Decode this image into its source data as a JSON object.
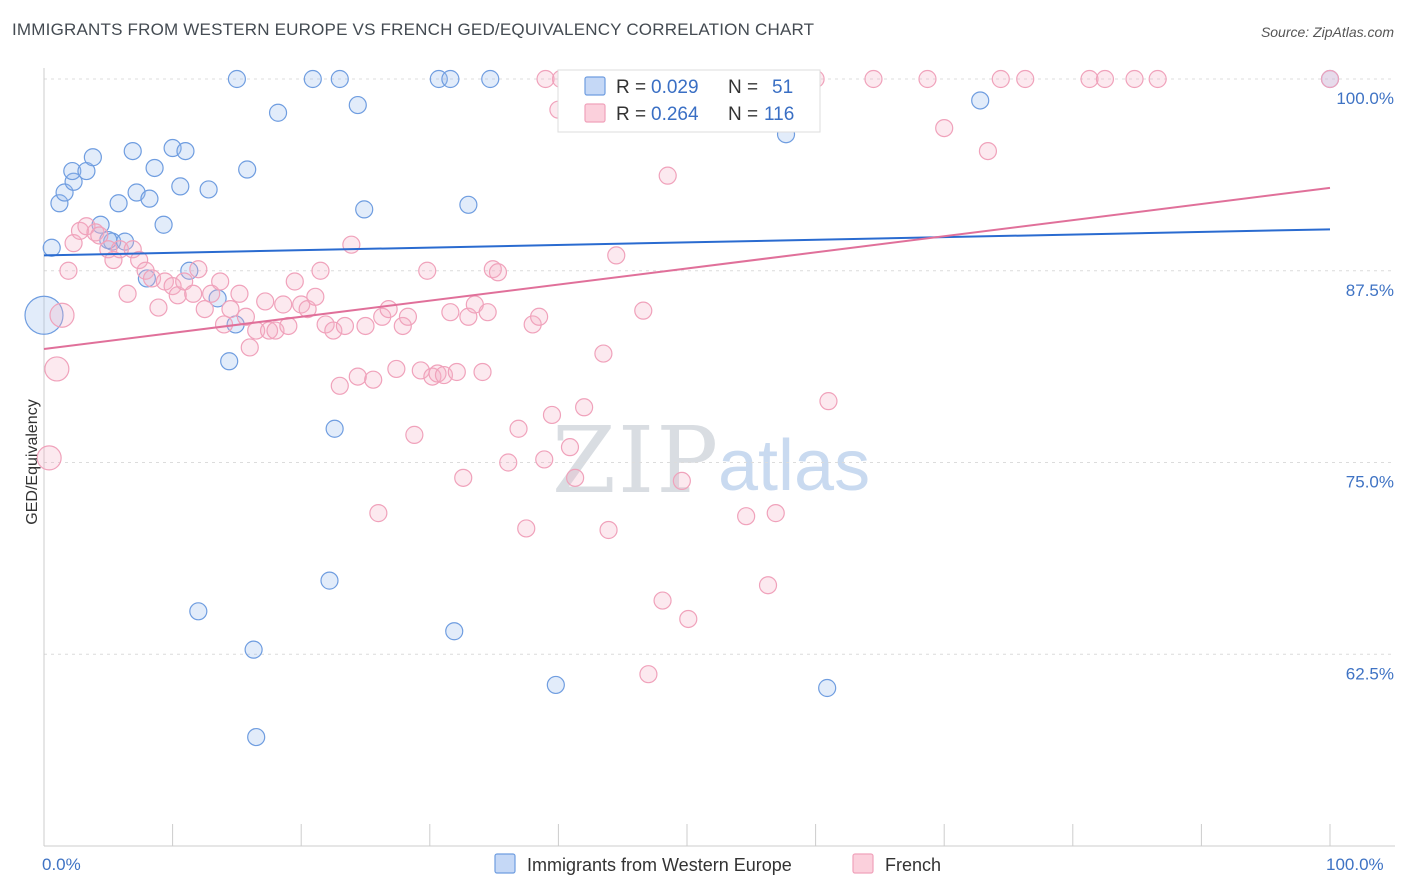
{
  "title": "IMMIGRANTS FROM WESTERN EUROPE VS FRENCH GED/EQUIVALENCY CORRELATION CHART",
  "source": "Source: ZipAtlas.com",
  "watermark": {
    "part1": "ZIP",
    "part2": "atlas"
  },
  "colors": {
    "blue": "#6f9de0",
    "blue_line": "#2a6bd0",
    "pink": "#f0a2bb",
    "pink_line": "#e0709a"
  },
  "legend_top": {
    "rows": [
      {
        "r_label": "R =",
        "r_value": "0.029",
        "n_label": "N =",
        "n_value": "51"
      },
      {
        "r_label": "R =",
        "r_value": "0.264",
        "n_label": "N =",
        "n_value": "116"
      }
    ]
  },
  "chart_data": {
    "type": "scatter",
    "title": "IMMIGRANTS FROM WESTERN EUROPE VS FRENCH GED/EQUIVALENCY CORRELATION CHART",
    "xlabel": "",
    "ylabel": "GED/Equivalency",
    "xlim": [
      0,
      100
    ],
    "ylim": [
      50,
      100
    ],
    "x_tick_labels": [
      "0.0%",
      "100.0%"
    ],
    "y_ticks": [
      62.5,
      75.0,
      87.5,
      100.0
    ],
    "y_tick_labels": [
      "62.5%",
      "75.0%",
      "87.5%",
      "100.0%"
    ],
    "grid": true,
    "legend_position": "bottom",
    "series": [
      {
        "name": "Immigrants from Western Europe",
        "color": "#6f9de0",
        "trend": {
          "y_at_x0": 88.5,
          "y_at_x100": 90.2
        },
        "points": [
          [
            0.0,
            84.6
          ],
          [
            0.6,
            89.0
          ],
          [
            1.2,
            91.9
          ],
          [
            1.6,
            92.6
          ],
          [
            2.3,
            93.3
          ],
          [
            2.2,
            94.0
          ],
          [
            3.3,
            94.0
          ],
          [
            3.8,
            94.9
          ],
          [
            4.4,
            90.5
          ],
          [
            5.3,
            89.4
          ],
          [
            5.8,
            91.9
          ],
          [
            6.3,
            89.4
          ],
          [
            6.9,
            95.3
          ],
          [
            7.2,
            92.6
          ],
          [
            8.2,
            92.2
          ],
          [
            8.6,
            94.2
          ],
          [
            9.3,
            90.5
          ],
          [
            10.0,
            95.5
          ],
          [
            10.6,
            93.0
          ],
          [
            11.0,
            95.3
          ],
          [
            11.3,
            87.5
          ],
          [
            12.8,
            92.8
          ],
          [
            13.5,
            85.7
          ],
          [
            14.4,
            81.6
          ],
          [
            14.9,
            84.0
          ],
          [
            15.8,
            94.1
          ],
          [
            16.3,
            62.8
          ],
          [
            16.5,
            57.1
          ],
          [
            18.2,
            97.8
          ],
          [
            20.9,
            100.0
          ],
          [
            22.2,
            67.3
          ],
          [
            22.6,
            77.2
          ],
          [
            23.0,
            100.0
          ],
          [
            24.4,
            98.3
          ],
          [
            24.9,
            91.5
          ],
          [
            30.7,
            100.0
          ],
          [
            31.6,
            100.0
          ],
          [
            31.9,
            64.0
          ],
          [
            33.0,
            91.8
          ],
          [
            34.7,
            100.0
          ],
          [
            39.8,
            60.5
          ],
          [
            48.8,
            100.0
          ],
          [
            56.0,
            100.0
          ],
          [
            57.7,
            96.4
          ],
          [
            60.9,
            60.3
          ],
          [
            72.8,
            98.6
          ],
          [
            100.0,
            100.0
          ],
          [
            15.0,
            100.0
          ],
          [
            12.0,
            65.3
          ],
          [
            8.0,
            87.0
          ],
          [
            5.0,
            89.5
          ]
        ]
      },
      {
        "name": "French",
        "color": "#f0a2bb",
        "trend": {
          "y_at_x0": 82.4,
          "y_at_x100": 92.9
        },
        "points": [
          [
            0.4,
            75.3
          ],
          [
            1.0,
            81.1
          ],
          [
            1.4,
            84.6
          ],
          [
            1.9,
            87.5
          ],
          [
            2.3,
            89.3
          ],
          [
            2.8,
            90.1
          ],
          [
            3.3,
            90.4
          ],
          [
            4.0,
            90.0
          ],
          [
            4.3,
            89.8
          ],
          [
            5.0,
            88.9
          ],
          [
            5.4,
            88.2
          ],
          [
            5.9,
            88.9
          ],
          [
            6.5,
            86.0
          ],
          [
            6.9,
            88.9
          ],
          [
            7.4,
            88.2
          ],
          [
            7.9,
            87.5
          ],
          [
            8.4,
            87.0
          ],
          [
            8.9,
            85.1
          ],
          [
            9.4,
            86.8
          ],
          [
            10.0,
            86.5
          ],
          [
            10.4,
            85.9
          ],
          [
            10.9,
            86.8
          ],
          [
            11.6,
            86.0
          ],
          [
            12.0,
            87.6
          ],
          [
            12.5,
            85.0
          ],
          [
            13.0,
            86.0
          ],
          [
            13.7,
            86.8
          ],
          [
            14.0,
            84.0
          ],
          [
            14.5,
            85.0
          ],
          [
            15.2,
            86.0
          ],
          [
            15.7,
            84.5
          ],
          [
            16.0,
            82.5
          ],
          [
            16.5,
            83.6
          ],
          [
            17.2,
            85.5
          ],
          [
            17.5,
            83.6
          ],
          [
            18.0,
            83.6
          ],
          [
            18.6,
            85.3
          ],
          [
            19.0,
            83.9
          ],
          [
            19.5,
            86.8
          ],
          [
            20.0,
            85.3
          ],
          [
            20.5,
            85.0
          ],
          [
            21.1,
            85.8
          ],
          [
            21.5,
            87.5
          ],
          [
            21.9,
            84.0
          ],
          [
            22.5,
            83.6
          ],
          [
            23.0,
            80.0
          ],
          [
            23.4,
            83.9
          ],
          [
            23.9,
            89.2
          ],
          [
            24.4,
            80.6
          ],
          [
            25.0,
            83.9
          ],
          [
            25.6,
            80.4
          ],
          [
            26.0,
            71.7
          ],
          [
            26.3,
            84.5
          ],
          [
            26.8,
            85.0
          ],
          [
            27.4,
            81.1
          ],
          [
            27.9,
            83.9
          ],
          [
            28.3,
            84.5
          ],
          [
            28.8,
            76.8
          ],
          [
            29.3,
            81.0
          ],
          [
            29.8,
            87.5
          ],
          [
            30.2,
            80.6
          ],
          [
            30.6,
            80.8
          ],
          [
            31.1,
            80.7
          ],
          [
            31.6,
            84.8
          ],
          [
            32.1,
            80.9
          ],
          [
            32.6,
            74.0
          ],
          [
            33.0,
            84.5
          ],
          [
            33.5,
            85.3
          ],
          [
            34.1,
            80.9
          ],
          [
            34.5,
            84.8
          ],
          [
            34.9,
            87.6
          ],
          [
            35.3,
            87.4
          ],
          [
            36.1,
            75.0
          ],
          [
            36.9,
            77.2
          ],
          [
            37.5,
            70.7
          ],
          [
            38.0,
            84.0
          ],
          [
            38.5,
            84.5
          ],
          [
            38.9,
            75.2
          ],
          [
            39.5,
            78.1
          ],
          [
            40.2,
            100.0
          ],
          [
            40.9,
            76.0
          ],
          [
            41.3,
            74.0
          ],
          [
            42.0,
            78.6
          ],
          [
            43.5,
            82.1
          ],
          [
            43.9,
            70.6
          ],
          [
            44.5,
            88.5
          ],
          [
            46.2,
            100.0
          ],
          [
            46.6,
            84.9
          ],
          [
            47.0,
            61.2
          ],
          [
            48.1,
            66.0
          ],
          [
            48.5,
            93.7
          ],
          [
            49.6,
            73.8
          ],
          [
            50.1,
            64.8
          ],
          [
            51.0,
            100.0
          ],
          [
            54.6,
            71.5
          ],
          [
            55.6,
            100.0
          ],
          [
            56.3,
            67.0
          ],
          [
            56.9,
            71.7
          ],
          [
            60.0,
            100.0
          ],
          [
            61.0,
            79.0
          ],
          [
            64.5,
            100.0
          ],
          [
            68.7,
            100.0
          ],
          [
            70.0,
            96.8
          ],
          [
            73.4,
            95.3
          ],
          [
            74.4,
            100.0
          ],
          [
            76.3,
            100.0
          ],
          [
            81.3,
            100.0
          ],
          [
            82.5,
            100.0
          ],
          [
            84.8,
            100.0
          ],
          [
            86.6,
            100.0
          ],
          [
            100.0,
            100.0
          ],
          [
            41.9,
            100.0
          ],
          [
            40.0,
            98.0
          ],
          [
            42.8,
            98.2
          ],
          [
            50.5,
            99.5
          ],
          [
            52.0,
            100.0
          ],
          [
            39.0,
            100.0
          ]
        ]
      }
    ]
  },
  "legend_bottom": {
    "items": [
      "Immigrants from Western Europe",
      "French"
    ]
  }
}
